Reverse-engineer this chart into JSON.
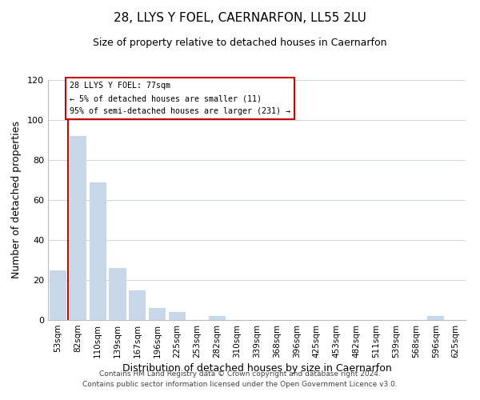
{
  "title1": "28, LLYS Y FOEL, CAERNARFON, LL55 2LU",
  "title2": "Size of property relative to detached houses in Caernarfon",
  "xlabel": "Distribution of detached houses by size in Caernarfon",
  "ylabel": "Number of detached properties",
  "bar_labels": [
    "53sqm",
    "82sqm",
    "110sqm",
    "139sqm",
    "167sqm",
    "196sqm",
    "225sqm",
    "253sqm",
    "282sqm",
    "310sqm",
    "339sqm",
    "368sqm",
    "396sqm",
    "425sqm",
    "453sqm",
    "482sqm",
    "511sqm",
    "539sqm",
    "568sqm",
    "596sqm",
    "625sqm"
  ],
  "bar_values": [
    25,
    92,
    69,
    26,
    15,
    6,
    4,
    0,
    2,
    0,
    0,
    0,
    0,
    0,
    0,
    0,
    0,
    0,
    0,
    2,
    0
  ],
  "bar_color": "#c8d8e8",
  "annotation_title": "28 LLYS Y FOEL: 77sqm",
  "annotation_line1": "← 5% of detached houses are smaller (11)",
  "annotation_line2": "95% of semi-detached houses are larger (231) →",
  "annotation_box_color": "#ffffff",
  "annotation_box_edge": "#cc0000",
  "red_line_color": "#cc0000",
  "ylim": [
    0,
    120
  ],
  "yticks": [
    0,
    20,
    40,
    60,
    80,
    100,
    120
  ],
  "footer1": "Contains HM Land Registry data © Crown copyright and database right 2024.",
  "footer2": "Contains public sector information licensed under the Open Government Licence v3.0."
}
